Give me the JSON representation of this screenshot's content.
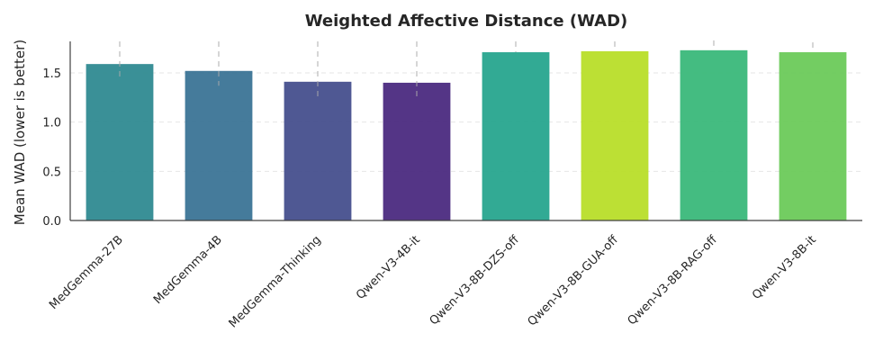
{
  "chart_data": {
    "type": "bar",
    "title": "Weighted Affective Distance (WAD)",
    "xlabel": "",
    "ylabel": "Mean WAD (lower is better)",
    "categories": [
      "MedGemma-27B",
      "MedGemma-4B",
      "MedGemma-Thinking",
      "Qwen-V3-4B-it",
      "Qwen-V3-8B-DZS-off",
      "Qwen-V3-8B-GUA-off",
      "Qwen-V3-8B-RAG-off",
      "Qwen-V3-8B-it"
    ],
    "values": [
      1.59,
      1.52,
      1.41,
      1.4,
      1.71,
      1.72,
      1.73,
      1.71
    ],
    "error_upper": [
      1.82,
      1.82,
      1.82,
      1.82,
      1.82,
      1.82,
      1.83,
      1.81
    ],
    "error_lower": [
      1.44,
      1.37,
      1.25,
      1.25,
      1.71,
      1.72,
      1.73,
      1.71
    ],
    "colors": [
      "#2f8a91",
      "#3b7496",
      "#464f8d",
      "#4b2a7f",
      "#27a58e",
      "#b8de29",
      "#3ab87a",
      "#6bca5a"
    ],
    "yticks": [
      0.0,
      0.5,
      1.0,
      1.5
    ],
    "ylim": [
      0,
      1.82
    ],
    "grid": "y-dashed",
    "legend": "none"
  }
}
